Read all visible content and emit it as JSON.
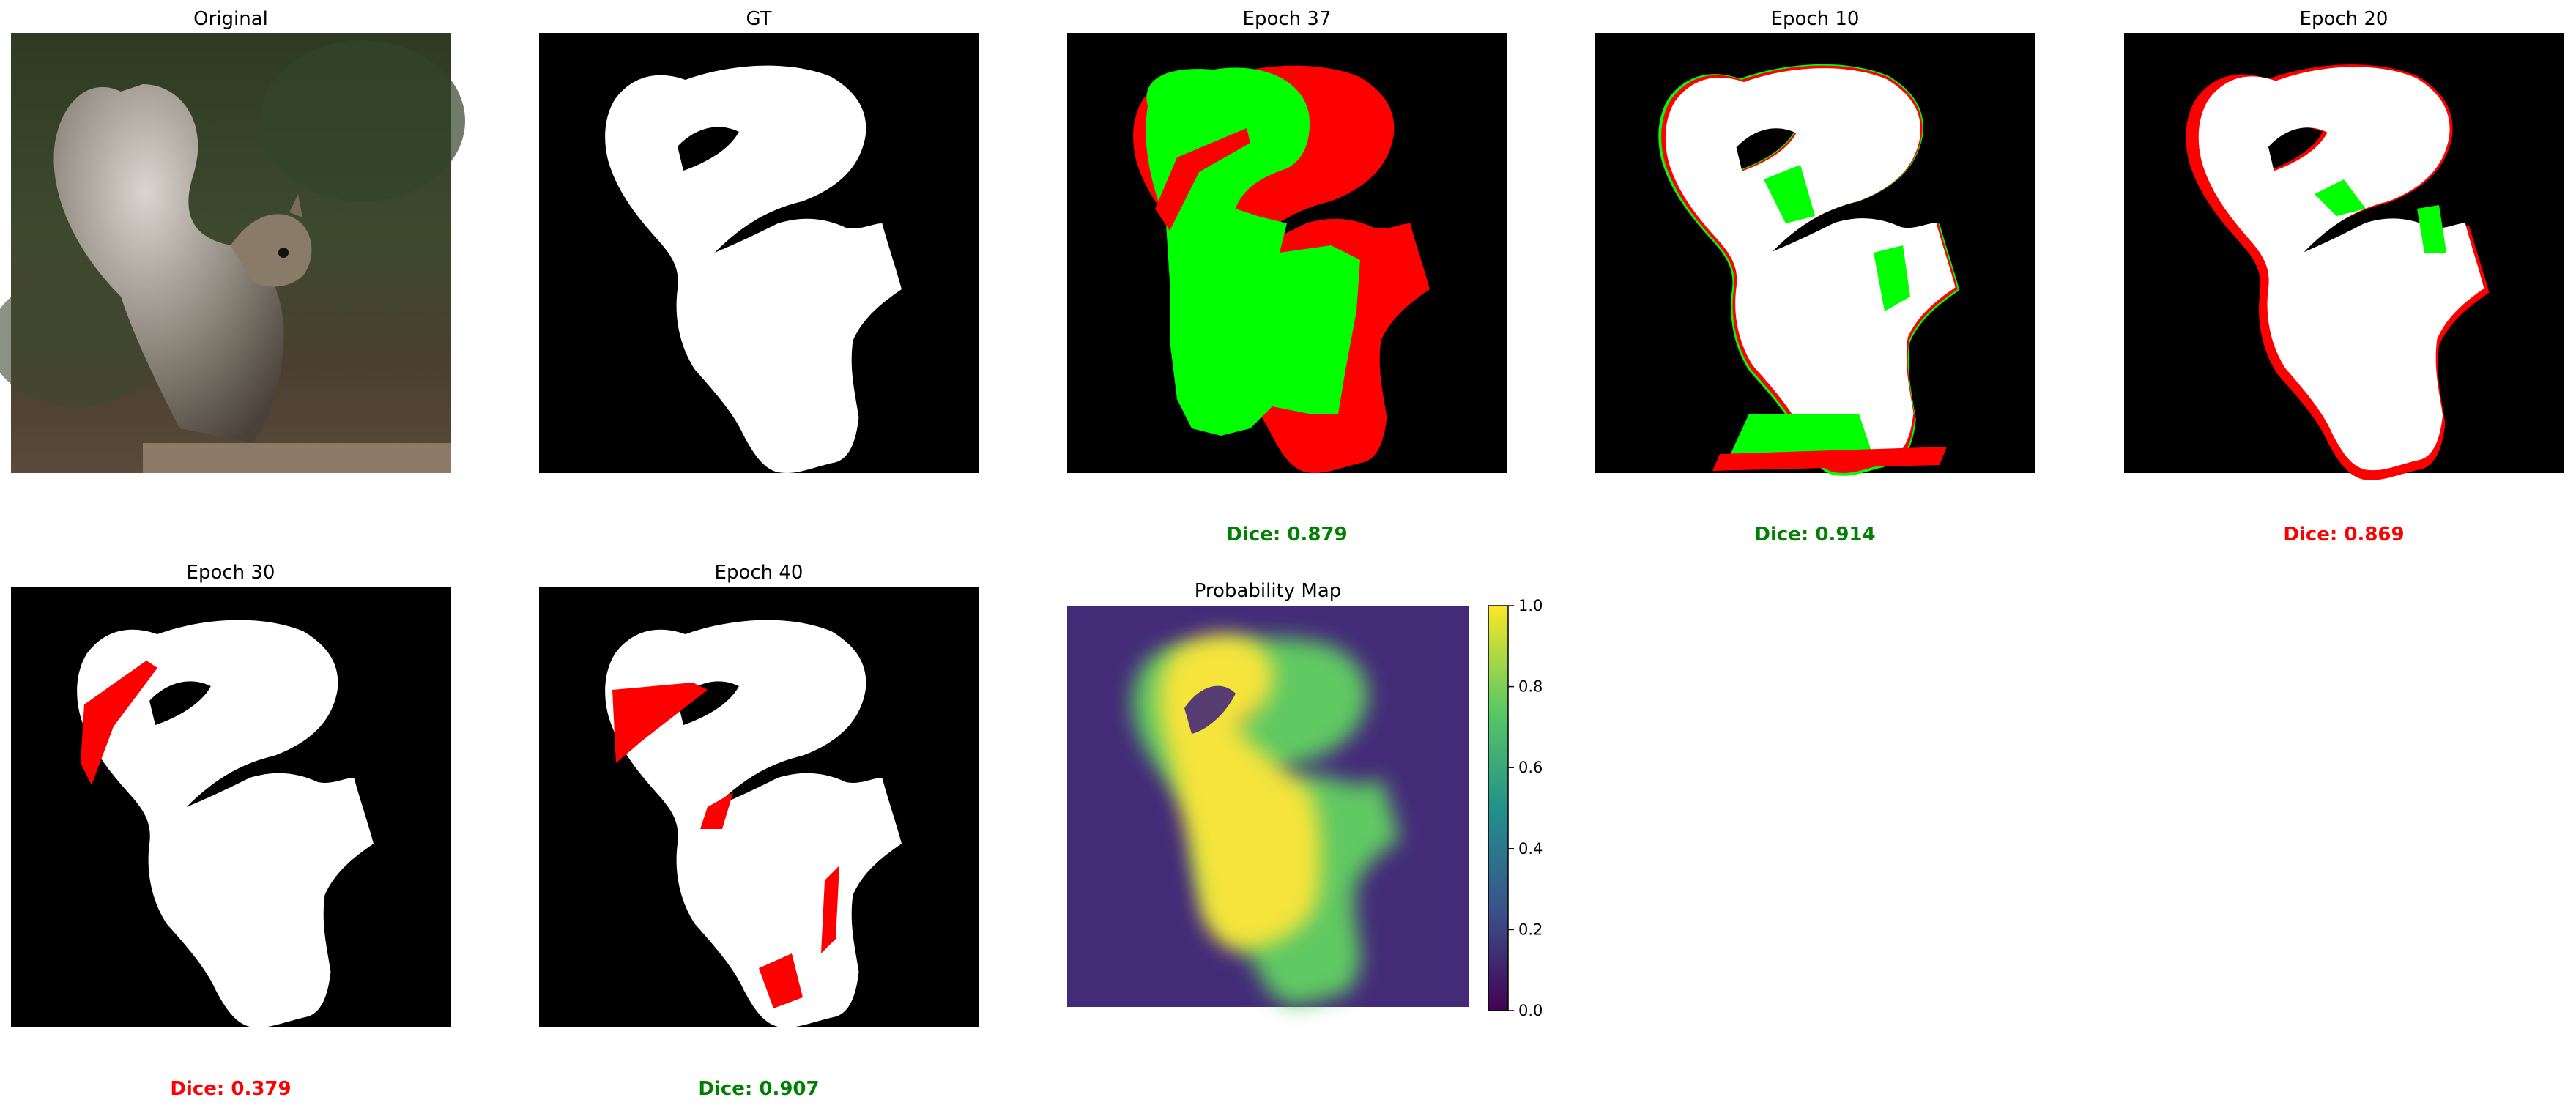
{
  "panels": {
    "original": {
      "title": "Original"
    },
    "gt": {
      "title": "GT"
    },
    "epoch37": {
      "title": "Epoch 37",
      "dice": "Dice: 0.879",
      "dice_color": "#008000"
    },
    "epoch10": {
      "title": "Epoch 10",
      "dice": "Dice: 0.914",
      "dice_color": "#008000"
    },
    "epoch20": {
      "title": "Epoch 20",
      "dice": "Dice: 0.869",
      "dice_color": "#ff0000"
    },
    "epoch30": {
      "title": "Epoch 30",
      "dice": "Dice: 0.379",
      "dice_color": "#ff0000"
    },
    "epoch40": {
      "title": "Epoch 40",
      "dice": "Dice: 0.907",
      "dice_color": "#008000"
    },
    "probability": {
      "title": "Probability Map"
    }
  },
  "colorbar": {
    "colormap": "viridis",
    "range": [
      0.0,
      1.0
    ],
    "ticks": [
      "0.0",
      "0.2",
      "0.4",
      "0.6",
      "0.8",
      "1.0"
    ]
  },
  "colors": {
    "mask": "#ffffff",
    "background": "#000000",
    "false_negative": "#ff0000",
    "false_positive": "#00ff00"
  }
}
